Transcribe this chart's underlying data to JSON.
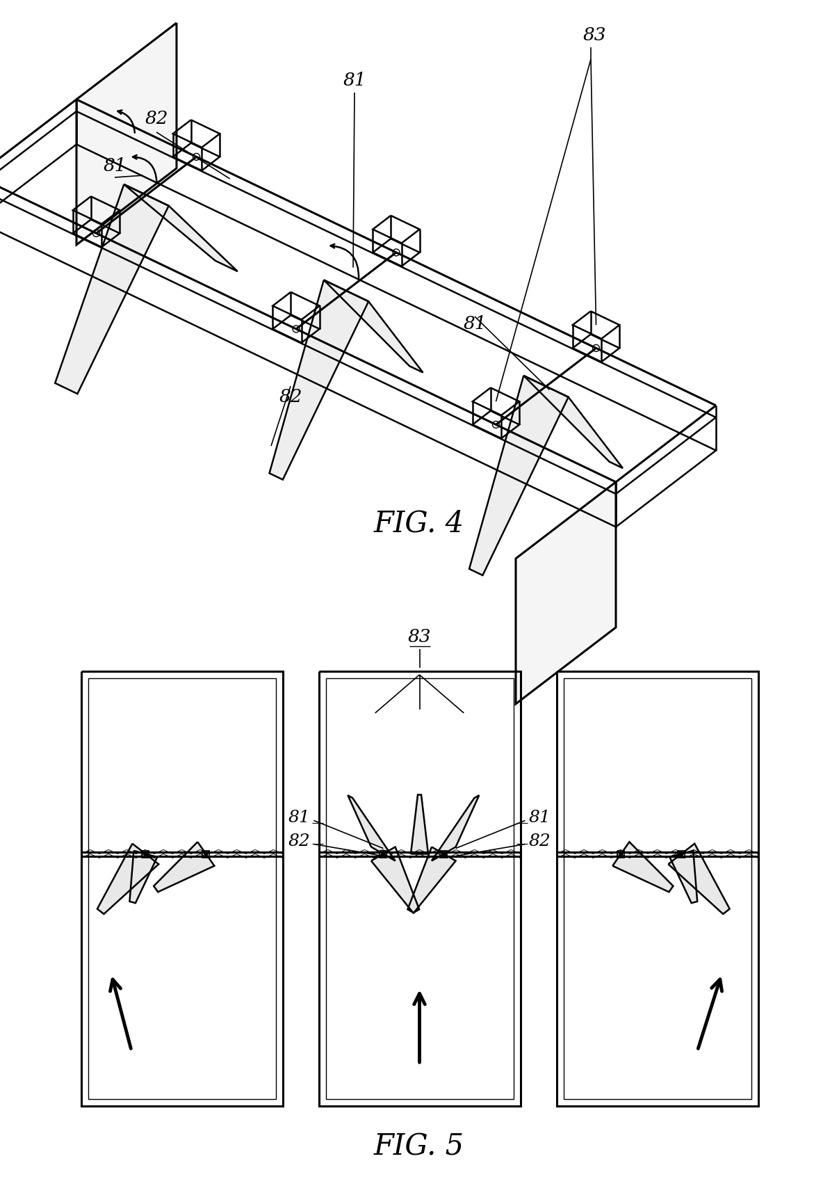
{
  "fig4_label": "FIG. 4",
  "fig5_label": "FIG. 5",
  "label_81": "81",
  "label_82": "82",
  "label_83": "83",
  "line_color": "#000000",
  "bg_color": "#ffffff",
  "fig4_caption_fontsize": 30,
  "fig5_caption_fontsize": 30,
  "label_fontsize": 18,
  "lw": 1.8,
  "lw_thick": 2.2,
  "lw_thin": 1.2
}
